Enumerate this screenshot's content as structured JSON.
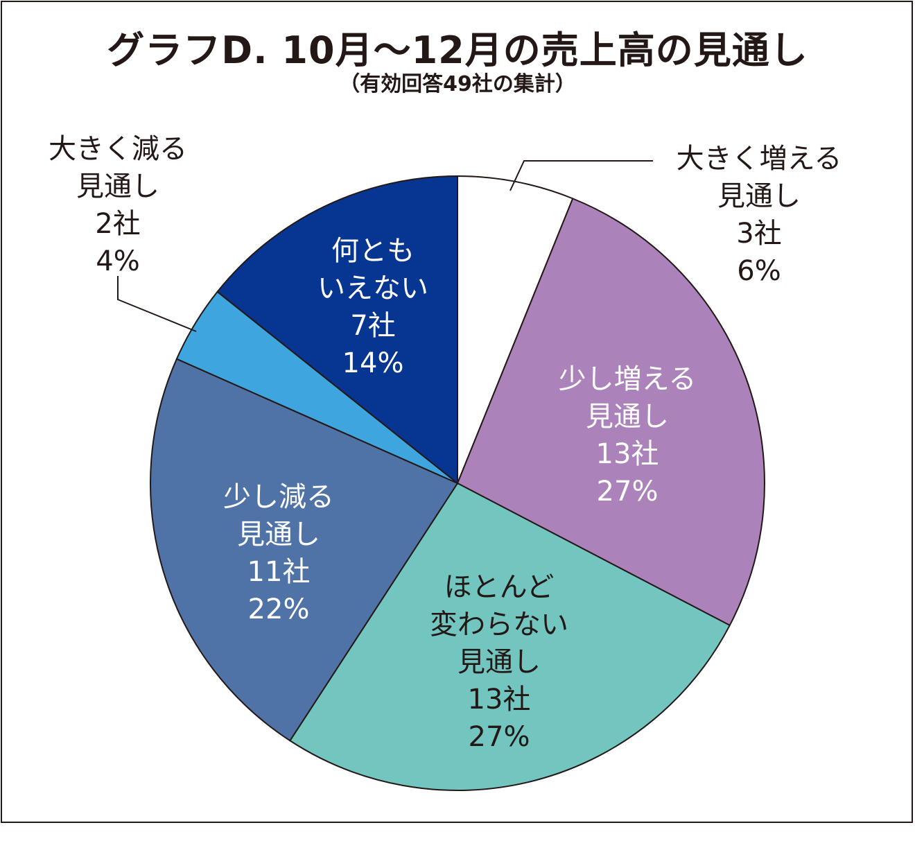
{
  "chart_data": {
    "type": "pie",
    "title": "グラフD.  10月〜12月の売上高の見通し",
    "subtitle": "（有効回答49社の集計）",
    "slices": [
      {
        "lines": [
          "大きく増える",
          "見通し"
        ],
        "count": "3社",
        "percent": "6%",
        "value": 3,
        "color": "#ffffff",
        "text_color": "#231815",
        "label_placement": "outside-right"
      },
      {
        "lines": [
          "少し増える",
          "見通し"
        ],
        "count": "13社",
        "percent": "27%",
        "value": 13,
        "color": "#ab82b9",
        "text_color": "#ffffff",
        "label_placement": "inside"
      },
      {
        "lines": [
          "ほとんど",
          "変わらない",
          "見通し"
        ],
        "count": "13社",
        "percent": "27%",
        "value": 13,
        "color": "#73c6c0",
        "text_color": "#231815",
        "label_placement": "inside"
      },
      {
        "lines": [
          "少し減る",
          "見通し"
        ],
        "count": "11社",
        "percent": "22%",
        "value": 11,
        "color": "#4f73a7",
        "text_color": "#ffffff",
        "label_placement": "inside"
      },
      {
        "lines": [
          "大きく減る",
          "見通し"
        ],
        "count": "2社",
        "percent": "4%",
        "value": 2,
        "color": "#3ea5de",
        "text_color": "#231815",
        "label_placement": "outside-left"
      },
      {
        "lines": [
          "何とも",
          "いえない"
        ],
        "count": "7社",
        "percent": "14%",
        "value": 7,
        "color": "#073592",
        "text_color": "#ffffff",
        "label_placement": "inside"
      }
    ]
  }
}
